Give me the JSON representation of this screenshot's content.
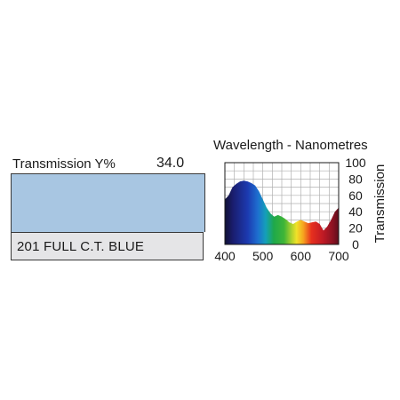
{
  "swatch": {
    "transmission_label": "Transmission Y%",
    "transmission_value": "34.0",
    "color": "#a8c6e2",
    "filter_name": "201 FULL C.T. BLUE"
  },
  "chart_data": {
    "type": "area",
    "title": "Wavelength - Nanometres",
    "xlabel": "",
    "ylabel": "Transmission",
    "xlim": [
      400,
      700
    ],
    "ylim": [
      0,
      100
    ],
    "x_ticks": [
      400,
      500,
      600,
      700
    ],
    "y_ticks": [
      0,
      20,
      40,
      60,
      80,
      100
    ],
    "x_tick_labels": [
      "400",
      "500",
      "600",
      "700"
    ],
    "y_tick_labels": [
      "0",
      "20",
      "40",
      "60",
      "80",
      "100"
    ],
    "grid": true,
    "fill": "visible spectrum gradient",
    "series": [
      {
        "x": [
          400,
          410,
          420,
          430,
          440,
          450,
          460,
          470,
          480,
          490,
          500,
          510,
          520,
          530,
          540,
          550,
          560,
          570,
          580,
          590,
          600,
          610,
          620,
          630,
          640,
          650,
          660,
          670,
          680,
          690,
          700
        ],
        "values": [
          55,
          60,
          70,
          74,
          77,
          78,
          77,
          75,
          72,
          65,
          55,
          45,
          38,
          34,
          36,
          34,
          31,
          27,
          25,
          28,
          30,
          28,
          26,
          27,
          28,
          25,
          17,
          22,
          30,
          40,
          45
        ]
      }
    ]
  }
}
